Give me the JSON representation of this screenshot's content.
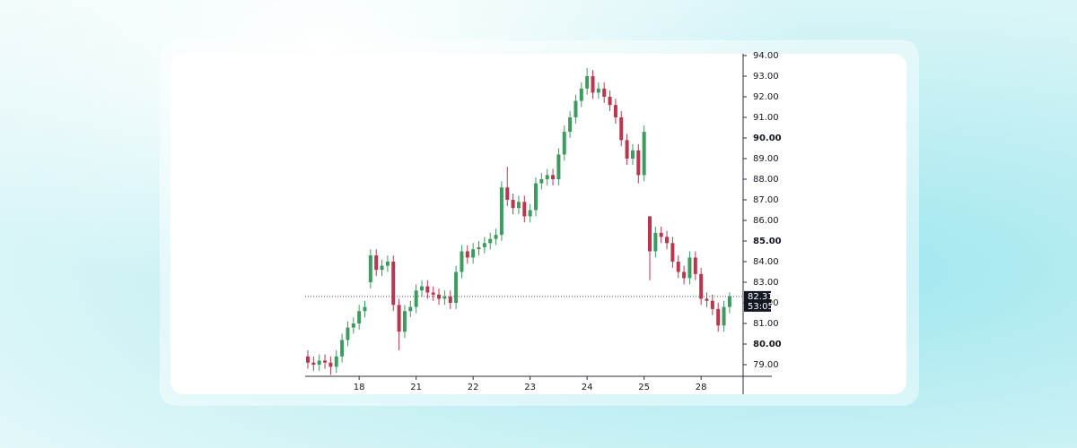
{
  "chart_data": {
    "type": "candlestick",
    "categories": [
      null,
      null,
      null,
      null,
      null,
      null,
      null,
      null,
      null,
      "18",
      null,
      null,
      null,
      null,
      null,
      null,
      null,
      null,
      null,
      "21",
      null,
      null,
      null,
      null,
      null,
      null,
      null,
      null,
      null,
      "22",
      null,
      null,
      null,
      null,
      null,
      null,
      null,
      null,
      null,
      "23",
      null,
      null,
      null,
      null,
      null,
      null,
      null,
      null,
      null,
      "24",
      null,
      null,
      null,
      null,
      null,
      null,
      null,
      null,
      null,
      "25",
      null,
      null,
      null,
      null,
      null,
      null,
      null,
      null,
      null,
      "28",
      null,
      null,
      null,
      null,
      null
    ],
    "open": [
      79.4,
      79.1,
      79.0,
      79.2,
      79.1,
      78.9,
      79.4,
      80.2,
      80.8,
      81.0,
      81.6,
      83.0,
      84.3,
      83.6,
      83.8,
      84.0,
      81.9,
      80.6,
      81.6,
      81.8,
      82.6,
      82.8,
      82.5,
      82.4,
      82.2,
      82.3,
      82.0,
      83.5,
      84.5,
      84.2,
      84.6,
      84.7,
      84.9,
      85.1,
      85.3,
      87.6,
      87.0,
      86.6,
      86.9,
      86.2,
      86.5,
      87.8,
      88.0,
      88.2,
      88.0,
      89.2,
      90.3,
      91.0,
      91.8,
      92.4,
      93.0,
      92.2,
      92.4,
      92.0,
      91.6,
      91.0,
      89.9,
      89.0,
      89.4,
      88.2,
      86.2,
      84.5,
      85.4,
      85.2,
      84.9,
      84.0,
      83.5,
      83.2,
      84.2,
      83.4,
      82.2,
      82.1,
      81.7,
      80.9,
      81.8
    ],
    "high": [
      79.7,
      79.4,
      79.5,
      79.5,
      79.4,
      79.7,
      80.5,
      81.1,
      81.3,
      81.9,
      82.1,
      84.6,
      84.6,
      84.1,
      84.3,
      84.3,
      82.2,
      81.9,
      82.1,
      82.9,
      83.1,
      83.1,
      82.8,
      82.7,
      82.6,
      82.6,
      83.8,
      84.8,
      84.8,
      84.9,
      85.0,
      85.2,
      85.4,
      85.6,
      87.9,
      88.6,
      87.3,
      87.2,
      87.2,
      86.8,
      88.1,
      88.3,
      88.5,
      88.5,
      89.5,
      90.6,
      91.3,
      92.1,
      92.7,
      93.4,
      93.3,
      92.7,
      92.7,
      92.3,
      91.9,
      91.3,
      90.2,
      89.7,
      89.7,
      90.6,
      86.2,
      85.7,
      85.7,
      85.5,
      85.2,
      84.3,
      83.8,
      84.5,
      84.5,
      83.7,
      82.5,
      82.4,
      82.0,
      82.1,
      82.5
    ],
    "low": [
      78.8,
      78.7,
      78.7,
      78.8,
      78.5,
      78.6,
      79.1,
      79.9,
      80.5,
      80.7,
      81.3,
      82.7,
      83.3,
      83.3,
      83.5,
      81.6,
      79.7,
      80.3,
      81.3,
      81.5,
      82.3,
      82.2,
      82.1,
      81.9,
      81.9,
      81.7,
      81.7,
      83.2,
      83.9,
      83.9,
      84.3,
      84.4,
      84.6,
      84.8,
      85.0,
      86.7,
      86.3,
      86.3,
      85.9,
      85.9,
      86.2,
      87.5,
      87.7,
      87.7,
      87.7,
      88.9,
      90.0,
      90.7,
      91.5,
      92.1,
      91.9,
      91.9,
      91.7,
      91.3,
      90.7,
      89.6,
      88.7,
      88.7,
      87.8,
      87.9,
      83.1,
      84.2,
      84.9,
      84.6,
      83.7,
      83.2,
      82.9,
      82.9,
      83.1,
      81.9,
      81.8,
      81.4,
      80.6,
      80.6,
      81.5
    ],
    "close": [
      79.1,
      79.0,
      79.2,
      79.1,
      78.9,
      79.4,
      80.2,
      80.8,
      81.0,
      81.6,
      81.8,
      84.3,
      83.6,
      83.8,
      84.0,
      81.9,
      80.6,
      81.6,
      81.8,
      82.6,
      82.8,
      82.5,
      82.4,
      82.2,
      82.3,
      82.0,
      83.5,
      84.5,
      84.2,
      84.6,
      84.7,
      84.9,
      85.1,
      85.3,
      87.6,
      87.0,
      86.6,
      86.9,
      86.2,
      86.5,
      87.8,
      88.0,
      88.2,
      88.0,
      89.2,
      90.3,
      91.0,
      91.8,
      92.4,
      93.0,
      92.2,
      92.4,
      92.0,
      91.6,
      91.0,
      89.9,
      89.0,
      89.4,
      88.2,
      90.3,
      84.5,
      85.4,
      85.2,
      84.9,
      84.0,
      83.5,
      83.2,
      84.2,
      83.4,
      82.2,
      82.1,
      81.7,
      80.9,
      81.8,
      82.31
    ],
    "up_color": "#3d9b5f",
    "down_color": "#b8374f",
    "ylim": [
      78.45,
      94.1
    ],
    "yticks": [
      {
        "value": 79,
        "label": "79.00"
      },
      {
        "value": 80,
        "label": "80.00"
      },
      {
        "value": 81,
        "label": "81.00"
      },
      {
        "value": 82,
        "label": "82.00"
      },
      {
        "value": 83,
        "label": "83.00"
      },
      {
        "value": 84,
        "label": "84.00"
      },
      {
        "value": 85,
        "label": "85.00"
      },
      {
        "value": 86,
        "label": "86.00"
      },
      {
        "value": 87,
        "label": "87.00"
      },
      {
        "value": 88,
        "label": "88.00"
      },
      {
        "value": 89,
        "label": "89.00"
      },
      {
        "value": 90,
        "label": "90.00"
      },
      {
        "value": 91,
        "label": "91.00"
      },
      {
        "value": 92,
        "label": "92.00"
      },
      {
        "value": 93,
        "label": "93.00"
      },
      {
        "value": 94,
        "label": "94.00"
      }
    ],
    "last_price": 82.31,
    "countdown": "53:05"
  }
}
